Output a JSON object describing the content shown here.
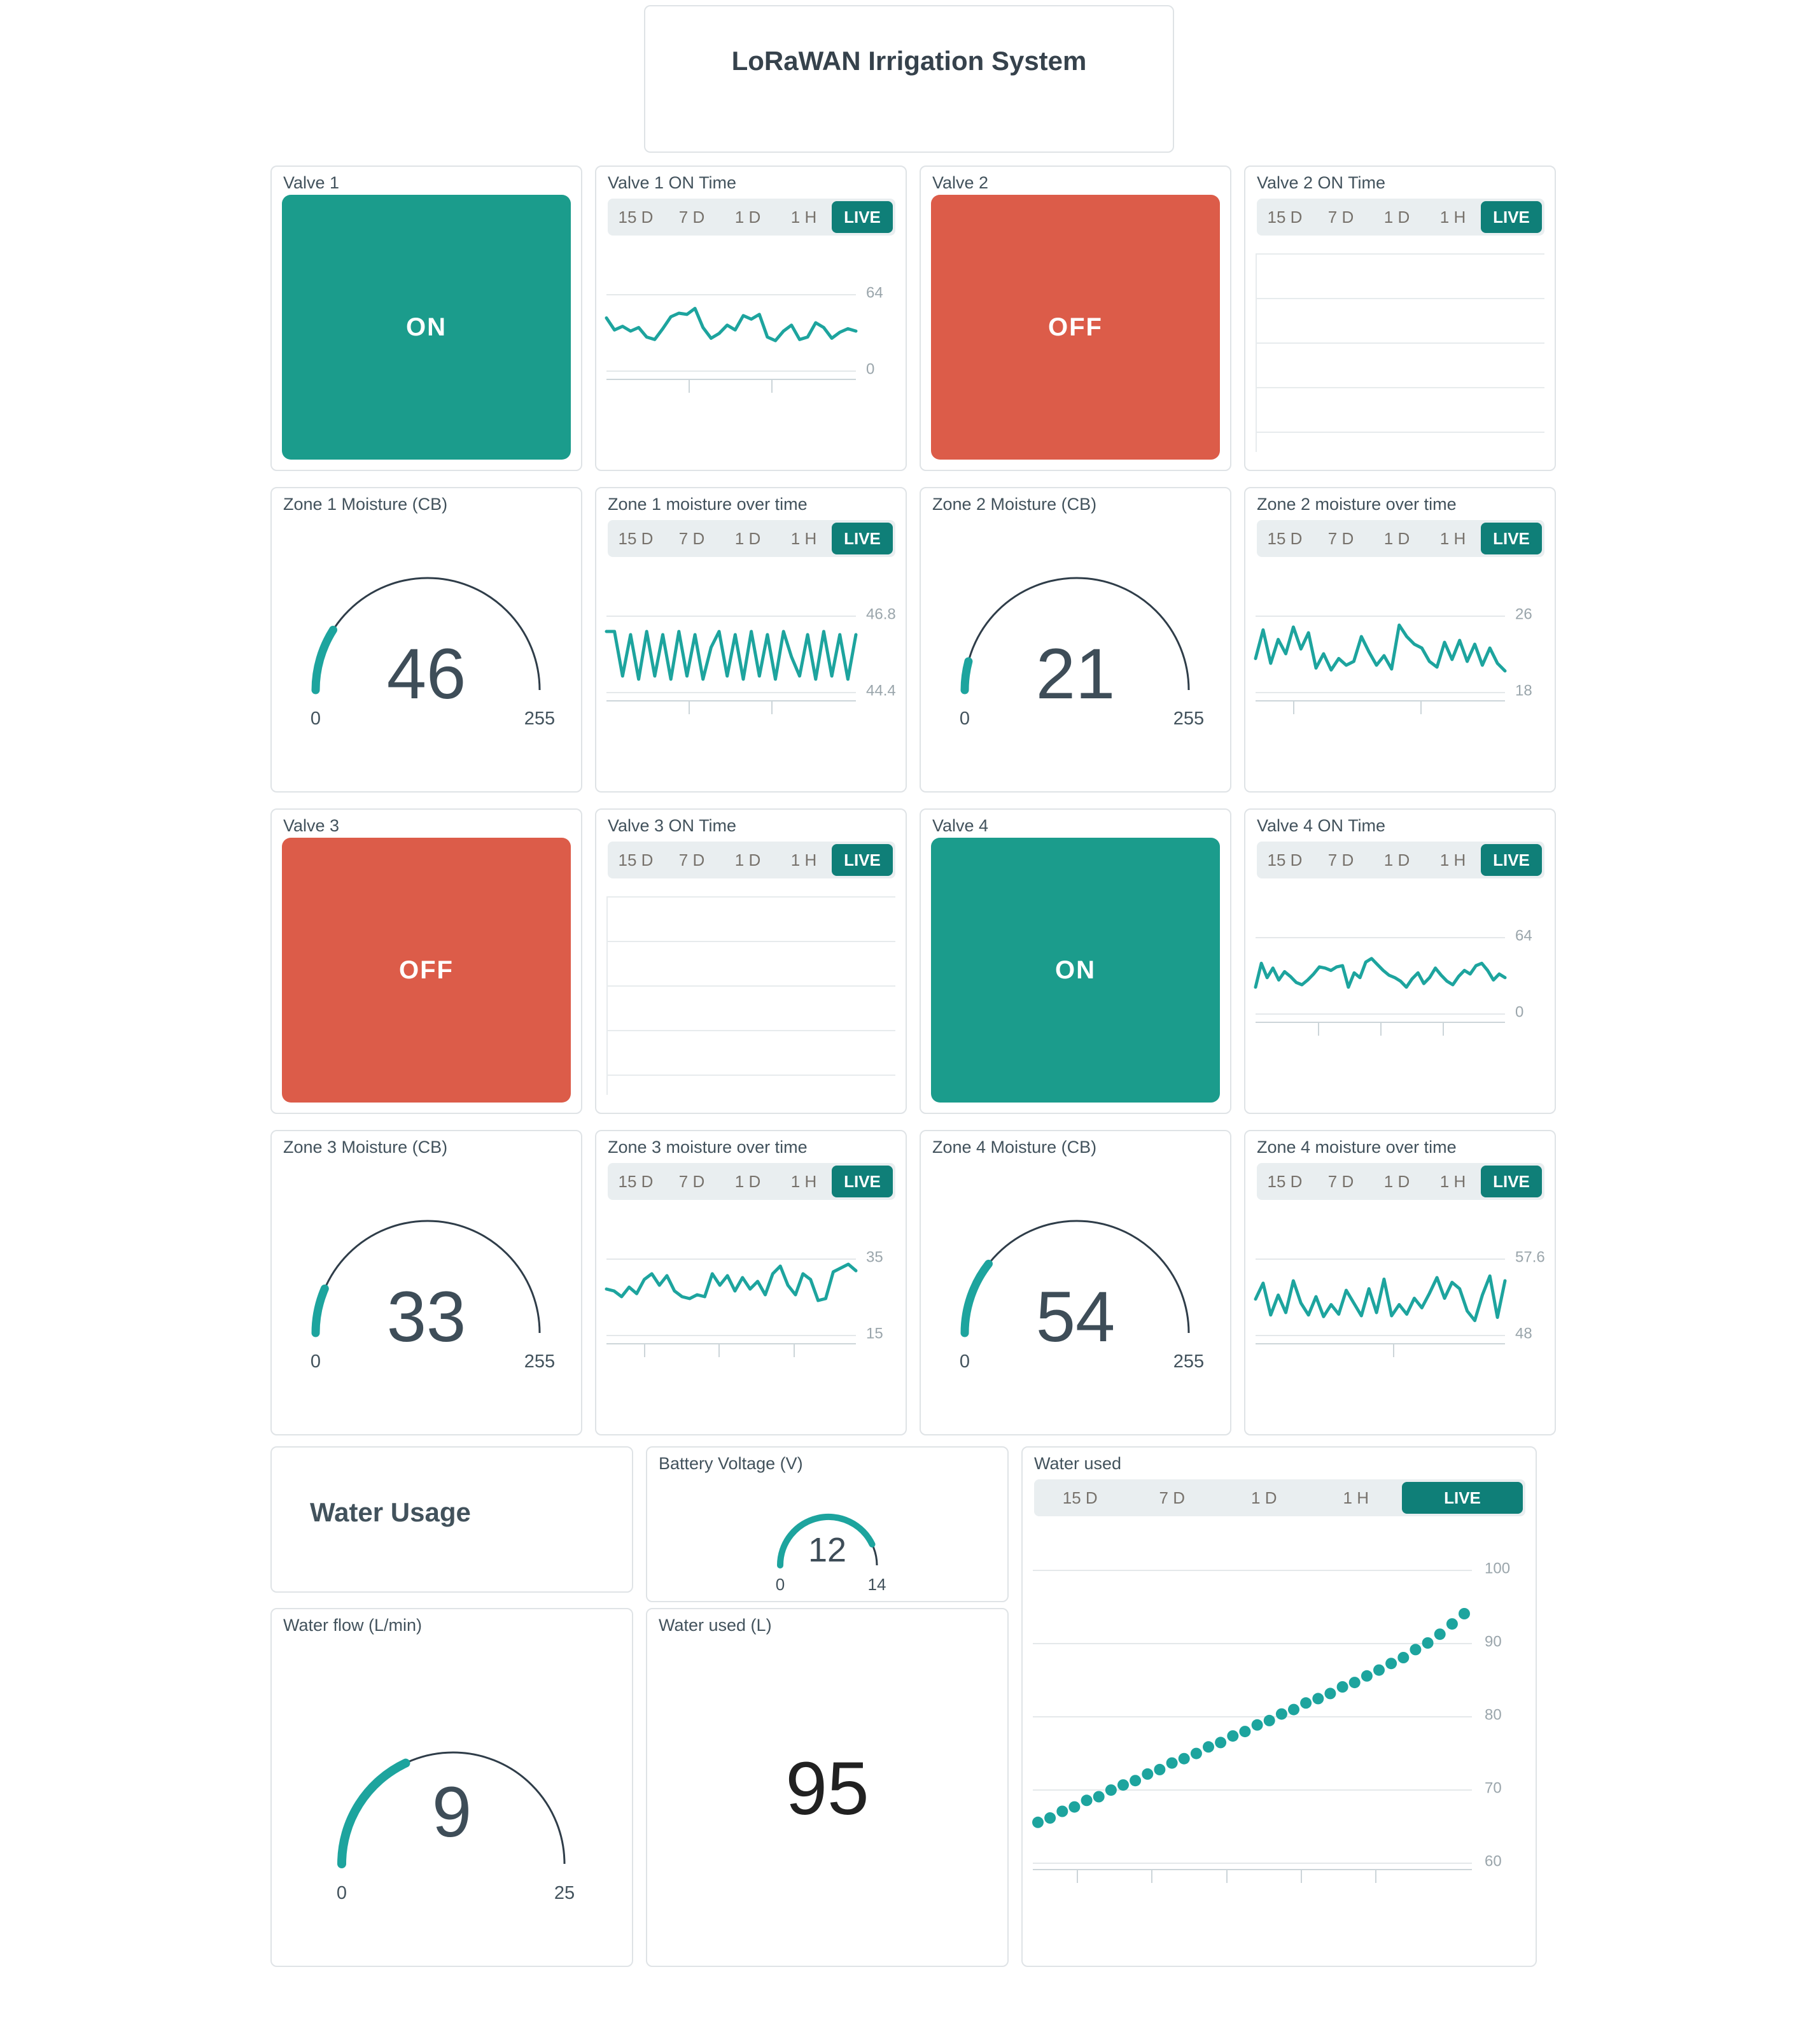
{
  "title_card": {
    "title": "LoRaWAN Irrigation System"
  },
  "time_selector": {
    "ranges": [
      "15 D",
      "7 D",
      "1 D",
      "1 H"
    ],
    "live": "LIVE"
  },
  "colors": {
    "valve_on": "#1b9c8c",
    "valve_off": "#dc5c49",
    "live": "#0f7f78",
    "line": "#1da49e",
    "gauge_fill": "#1da49e",
    "gauge_track": "#2f3d49",
    "grid": "#e4e8ea"
  },
  "cards": {
    "valve1": {
      "title": "Valve 1",
      "state": "ON"
    },
    "valve2": {
      "title": "Valve 2",
      "state": "OFF"
    },
    "valve3": {
      "title": "Valve 3",
      "state": "OFF"
    },
    "valve4": {
      "title": "Valve 4",
      "state": "ON"
    },
    "valve1_chart": {
      "title": "Valve 1 ON Time",
      "y_top": "64",
      "y_bottom": "0",
      "ymin": 0,
      "ymax": 64,
      "values": [
        44,
        34,
        37,
        33,
        36,
        28,
        26,
        35,
        45,
        48,
        47,
        52,
        36,
        27,
        31,
        38,
        34,
        46,
        43,
        47,
        28,
        25,
        33,
        38,
        26,
        28,
        40,
        36,
        27,
        32,
        35,
        33
      ]
    },
    "valve2_chart": {
      "title": "Valve 2 ON Time",
      "empty": true,
      "values": []
    },
    "valve3_chart": {
      "title": "Valve 3 ON Time",
      "empty": true,
      "values": []
    },
    "valve4_chart": {
      "title": "Valve 4 ON Time",
      "y_top": "64",
      "y_bottom": "0",
      "ymin": 0,
      "ymax": 64,
      "values": [
        22,
        42,
        30,
        38,
        28,
        35,
        31,
        26,
        24,
        28,
        33,
        39,
        38,
        36,
        39,
        40,
        22,
        34,
        30,
        43,
        46,
        41,
        36,
        32,
        30,
        27,
        22,
        29,
        34,
        25,
        30,
        38,
        32,
        27,
        24,
        31,
        36,
        33,
        40,
        42,
        36,
        28,
        33,
        30
      ]
    },
    "zone1_gauge": {
      "title": "Zone 1 Moisture (CB)",
      "value": 46,
      "min": 0,
      "max": 255
    },
    "zone2_gauge": {
      "title": "Zone 2 Moisture (CB)",
      "value": 21,
      "min": 0,
      "max": 255
    },
    "zone3_gauge": {
      "title": "Zone 3 Moisture (CB)",
      "value": 33,
      "min": 0,
      "max": 255
    },
    "zone4_gauge": {
      "title": "Zone 4 Moisture (CB)",
      "value": 54,
      "min": 0,
      "max": 255
    },
    "zone1_chart": {
      "title": "Zone 1 moisture over time",
      "y_top": "46.8",
      "y_bottom": "44.4",
      "ymin": 44.4,
      "ymax": 46.8,
      "values": [
        46.3,
        46.3,
        44.9,
        46.2,
        44.8,
        46.3,
        44.9,
        46.2,
        44.8,
        46.3,
        44.9,
        46.2,
        44.8,
        45.8,
        46.3,
        44.9,
        46.2,
        44.8,
        46.3,
        44.9,
        46.2,
        44.8,
        46.3,
        45.5,
        44.9,
        46.2,
        44.8,
        46.3,
        44.9,
        46.2,
        44.8,
        46.2
      ]
    },
    "zone2_chart": {
      "title": "Zone 2 moisture over time",
      "y_top": "26",
      "y_bottom": "18",
      "ymin": 18,
      "ymax": 26,
      "values": [
        21.5,
        24.5,
        21,
        23.5,
        22,
        24.8,
        22.5,
        24.2,
        20.5,
        22,
        20.3,
        21.5,
        20.8,
        21.2,
        23.8,
        22.2,
        20.8,
        21.8,
        20.4,
        25,
        23.8,
        23,
        22.6,
        21.2,
        20.6,
        23.2,
        21.4,
        23.4,
        21.2,
        23,
        20.8,
        22.6,
        21,
        20.2
      ]
    },
    "zone3_chart": {
      "title": "Zone 3 moisture over time",
      "y_top": "35",
      "y_bottom": "15",
      "ymin": 15,
      "ymax": 35,
      "values": [
        27,
        26.5,
        25,
        27.5,
        25.8,
        29.5,
        31,
        28,
        30.5,
        26.5,
        25,
        24.5,
        25.5,
        25,
        31,
        28,
        30.5,
        26.5,
        30,
        27,
        29,
        25.5,
        31,
        33,
        28,
        25.5,
        31,
        29.5,
        24,
        24.5,
        31.5,
        32.5,
        33.5,
        31.8
      ]
    },
    "zone4_chart": {
      "title": "Zone 4 moisture over time",
      "y_top": "57.6",
      "y_bottom": "48",
      "ymin": 48,
      "ymax": 57.6,
      "values": [
        52.5,
        54.5,
        50.5,
        53,
        50.8,
        54.8,
        52,
        50.5,
        52.8,
        50.3,
        51.8,
        50.6,
        53.6,
        52,
        50.4,
        53.8,
        50.8,
        55,
        50.4,
        51.8,
        50.6,
        52.6,
        51.4,
        53.2,
        55.2,
        52.6,
        54.6,
        53.8,
        51,
        49.8,
        53,
        55.4,
        50.2,
        54.8
      ]
    },
    "water_usage": {
      "title": "Water Usage"
    },
    "battery_gauge": {
      "title": "Battery Voltage (V)",
      "value": 12,
      "min": 0,
      "max": 14
    },
    "water_flow_gauge": {
      "title": "Water flow (L/min)",
      "value": 9,
      "min": 0,
      "max": 25
    },
    "water_used_number": {
      "title": "Water used (L)",
      "value": 95
    },
    "water_used_chart": {
      "title": "Water used",
      "y_labels": [
        "100",
        "90",
        "80",
        "70",
        "60"
      ],
      "ymin": 60,
      "ymax": 100,
      "values": [
        65.5,
        66.1,
        67.0,
        67.6,
        68.5,
        69.0,
        69.9,
        70.6,
        71.2,
        72.1,
        72.7,
        73.6,
        74.2,
        74.9,
        75.8,
        76.4,
        77.3,
        77.9,
        78.8,
        79.4,
        80.3,
        80.9,
        81.8,
        82.4,
        83.1,
        84.0,
        84.6,
        85.5,
        86.3,
        87.2,
        88.0,
        89.1,
        90.0,
        91.2,
        92.6,
        94.0
      ]
    }
  },
  "chart_data": [
    {
      "type": "line",
      "title": "Valve 1 ON Time",
      "ylim": [
        0,
        64
      ],
      "legend_position": "none"
    },
    {
      "type": "line",
      "title": "Valve 4 ON Time",
      "ylim": [
        0,
        64
      ],
      "legend_position": "none"
    },
    {
      "type": "line",
      "title": "Zone 1 moisture over time",
      "ylim": [
        44.4,
        46.8
      ],
      "legend_position": "none"
    },
    {
      "type": "line",
      "title": "Zone 2 moisture over time",
      "ylim": [
        18,
        26
      ],
      "legend_position": "none"
    },
    {
      "type": "line",
      "title": "Zone 3 moisture over time",
      "ylim": [
        15,
        35
      ],
      "legend_position": "none"
    },
    {
      "type": "line",
      "title": "Zone 4 moisture over time",
      "ylim": [
        48,
        57.6
      ],
      "legend_position": "none"
    },
    {
      "type": "scatter",
      "title": "Water used",
      "ylim": [
        60,
        100
      ],
      "legend_position": "none"
    }
  ]
}
